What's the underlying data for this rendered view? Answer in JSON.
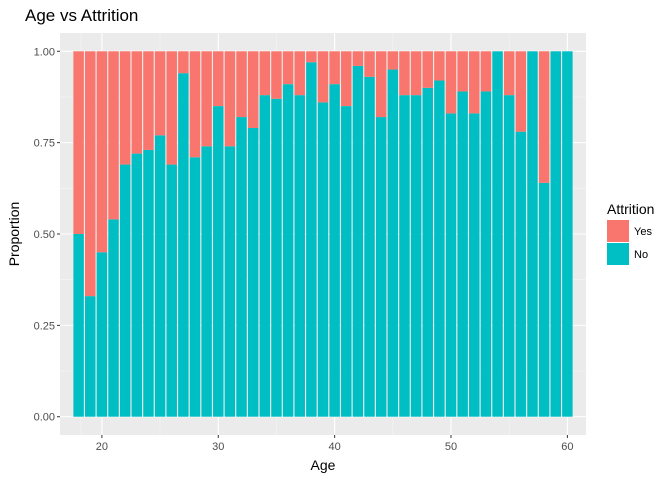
{
  "chart_data": {
    "type": "bar",
    "stacked": true,
    "position": "fill",
    "title": "Age vs Attrition",
    "xlabel": "Age",
    "ylabel": "Proportion",
    "xlim": [
      16.4,
      61.6
    ],
    "ylim": [
      -0.05,
      1.05
    ],
    "x_ticks": [
      20,
      30,
      40,
      50,
      60
    ],
    "y_ticks": [
      0,
      0.25,
      0.5,
      0.75,
      1.0
    ],
    "y_tick_labels": [
      "0.00",
      "0.25",
      "0.50",
      "0.75",
      "1.00"
    ],
    "grid": true,
    "legend": {
      "title": "Attrition",
      "placement": "right",
      "entries": [
        {
          "label": "Yes",
          "color": "#F8766D"
        },
        {
          "label": "No",
          "color": "#00BFC4"
        }
      ]
    },
    "x": [
      18,
      19,
      20,
      21,
      22,
      23,
      24,
      25,
      26,
      27,
      28,
      29,
      30,
      31,
      32,
      33,
      34,
      35,
      36,
      37,
      38,
      39,
      40,
      41,
      42,
      43,
      44,
      45,
      46,
      47,
      48,
      49,
      50,
      51,
      52,
      53,
      54,
      55,
      56,
      57,
      58,
      59,
      60
    ],
    "series": [
      {
        "name": "No",
        "color": "#00BFC4",
        "values": [
          0.5,
          0.33,
          0.45,
          0.54,
          0.69,
          0.72,
          0.73,
          0.77,
          0.69,
          0.94,
          0.71,
          0.74,
          0.85,
          0.74,
          0.82,
          0.79,
          0.88,
          0.87,
          0.91,
          0.88,
          0.97,
          0.86,
          0.91,
          0.85,
          0.96,
          0.93,
          0.82,
          0.95,
          0.88,
          0.88,
          0.9,
          0.92,
          0.83,
          0.89,
          0.83,
          0.89,
          1.0,
          0.88,
          0.78,
          1.0,
          0.64,
          1.0,
          1.0
        ]
      },
      {
        "name": "Yes",
        "color": "#F8766D",
        "values": [
          0.5,
          0.67,
          0.55,
          0.46,
          0.31,
          0.28,
          0.27,
          0.23,
          0.31,
          0.06,
          0.29,
          0.26,
          0.15,
          0.26,
          0.18,
          0.21,
          0.12,
          0.13,
          0.09,
          0.12,
          0.03,
          0.14,
          0.09,
          0.15,
          0.04,
          0.07,
          0.18,
          0.05,
          0.12,
          0.12,
          0.1,
          0.08,
          0.17,
          0.11,
          0.17,
          0.11,
          0.0,
          0.12,
          0.22,
          0.0,
          0.36,
          0.0,
          0.0
        ]
      }
    ]
  }
}
